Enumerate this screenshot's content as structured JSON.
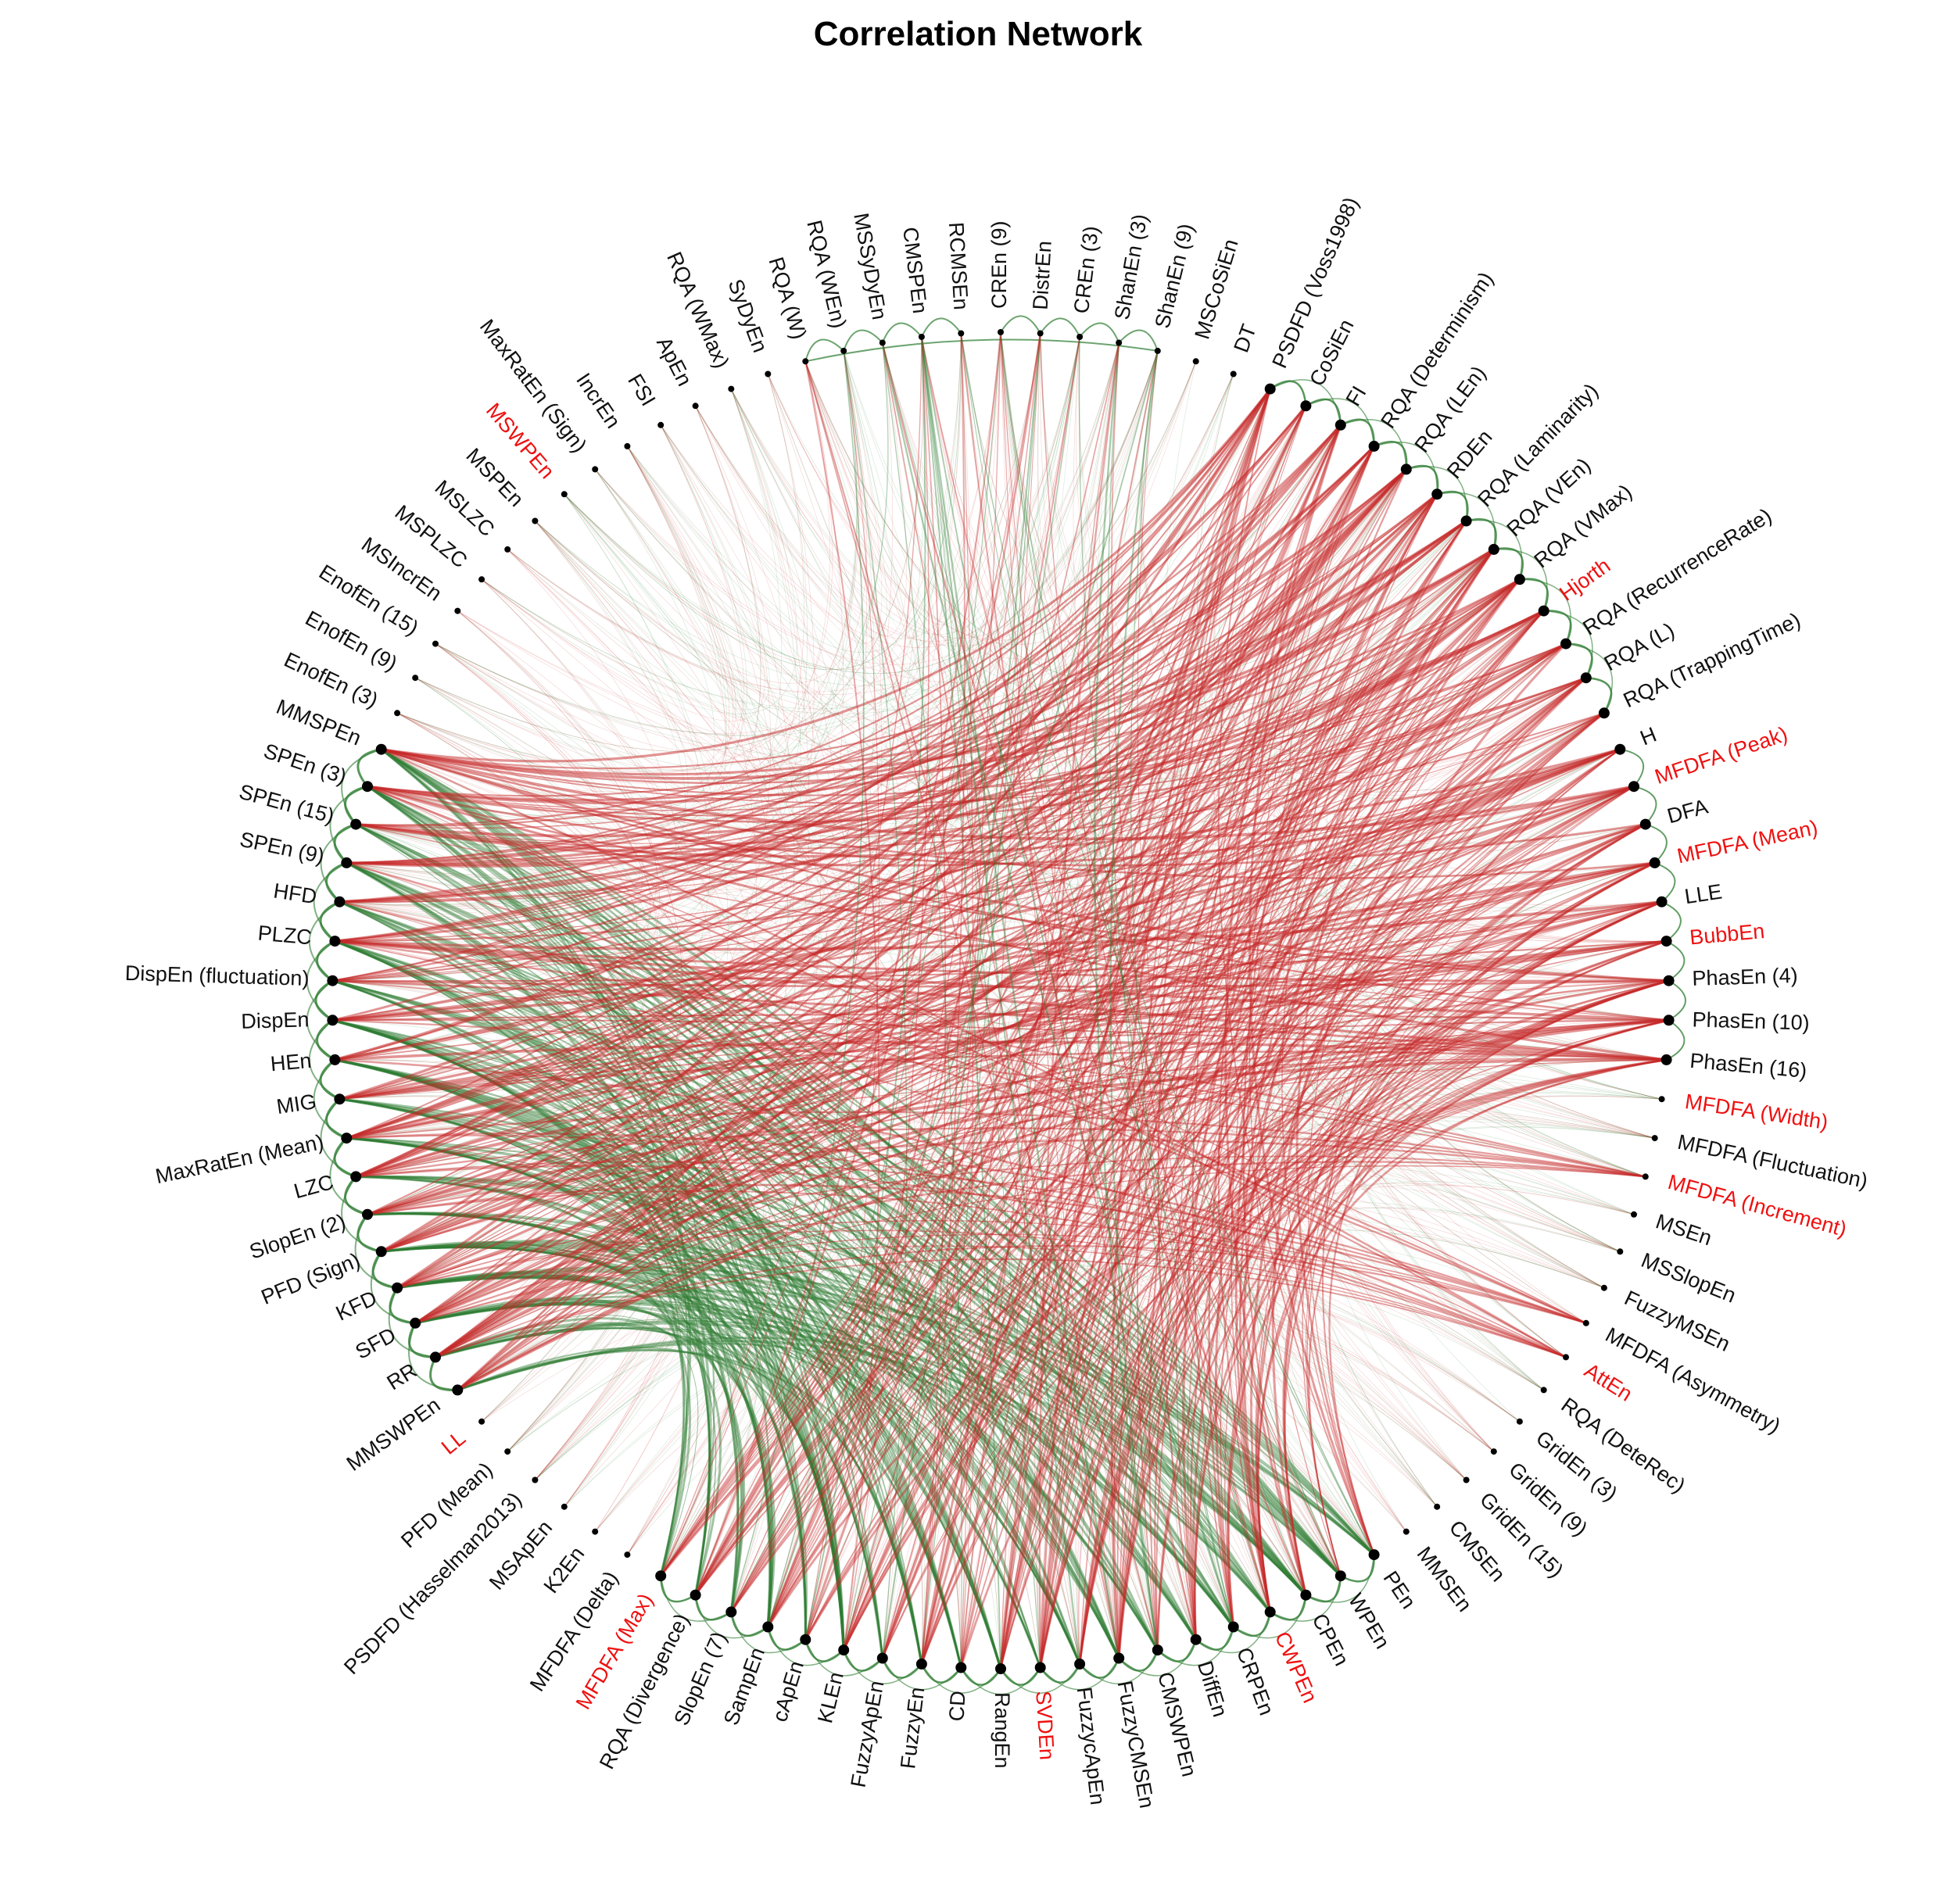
{
  "title": "Correlation Network",
  "colors": {
    "positive": "#2e7d32",
    "negative": "#c62828",
    "label_default": "#111111",
    "label_highlight": "#ee1111",
    "node": "#000000"
  },
  "nodes": [
    {
      "label": "CREn (9)",
      "highlight": false
    },
    {
      "label": "DistrEn",
      "highlight": false
    },
    {
      "label": "CREn (3)",
      "highlight": false
    },
    {
      "label": "ShanEn (3)",
      "highlight": false
    },
    {
      "label": "ShanEn (9)",
      "highlight": false
    },
    {
      "label": "MSCoSiEn",
      "highlight": false
    },
    {
      "label": "DT",
      "highlight": false
    },
    {
      "label": "PSDFD (Voss1998)",
      "highlight": false
    },
    {
      "label": "CoSiEn",
      "highlight": false
    },
    {
      "label": "FI",
      "highlight": false
    },
    {
      "label": "RQA (Determinism)",
      "highlight": false
    },
    {
      "label": "RQA (LEn)",
      "highlight": false
    },
    {
      "label": "RDEn",
      "highlight": false
    },
    {
      "label": "RQA (Laminarity)",
      "highlight": false
    },
    {
      "label": "RQA (VEn)",
      "highlight": false
    },
    {
      "label": "RQA (VMax)",
      "highlight": false
    },
    {
      "label": "Hjorth",
      "highlight": true
    },
    {
      "label": "RQA (RecurrenceRate)",
      "highlight": false
    },
    {
      "label": "RQA (L)",
      "highlight": false
    },
    {
      "label": "RQA (TrappingTime)",
      "highlight": false
    },
    {
      "label": "H",
      "highlight": false
    },
    {
      "label": "MFDFA (Peak)",
      "highlight": true
    },
    {
      "label": "DFA",
      "highlight": false
    },
    {
      "label": "MFDFA (Mean)",
      "highlight": true
    },
    {
      "label": "LLE",
      "highlight": false
    },
    {
      "label": "BubbEn",
      "highlight": true
    },
    {
      "label": "PhasEn (4)",
      "highlight": false
    },
    {
      "label": "PhasEn (10)",
      "highlight": false
    },
    {
      "label": "PhasEn (16)",
      "highlight": false
    },
    {
      "label": "MFDFA (Width)",
      "highlight": true
    },
    {
      "label": "MFDFA (Fluctuation)",
      "highlight": false
    },
    {
      "label": "MFDFA (Increment)",
      "highlight": true
    },
    {
      "label": "MSEn",
      "highlight": false
    },
    {
      "label": "MSSlopEn",
      "highlight": false
    },
    {
      "label": "FuzzyMSEn",
      "highlight": false
    },
    {
      "label": "MFDFA (Asymmetry)",
      "highlight": false
    },
    {
      "label": "AttEn",
      "highlight": true
    },
    {
      "label": "RQA (DeteRec)",
      "highlight": false
    },
    {
      "label": "GridEn (3)",
      "highlight": false
    },
    {
      "label": "GridEn (9)",
      "highlight": false
    },
    {
      "label": "GridEn (15)",
      "highlight": false
    },
    {
      "label": "CMSEn",
      "highlight": false
    },
    {
      "label": "MMSEn",
      "highlight": false
    },
    {
      "label": "PEn",
      "highlight": false
    },
    {
      "label": "WPEn",
      "highlight": false
    },
    {
      "label": "CPEn",
      "highlight": false
    },
    {
      "label": "CWPEn",
      "highlight": true
    },
    {
      "label": "CRPEn",
      "highlight": false
    },
    {
      "label": "DiffEn",
      "highlight": false
    },
    {
      "label": "CMSWPEn",
      "highlight": false
    },
    {
      "label": "FuzzyCMSEn",
      "highlight": false
    },
    {
      "label": "FuzzycApEn",
      "highlight": false
    },
    {
      "label": "SVDEn",
      "highlight": true
    },
    {
      "label": "RangEn",
      "highlight": false
    },
    {
      "label": "CD",
      "highlight": false
    },
    {
      "label": "FuzzyEn",
      "highlight": false
    },
    {
      "label": "FuzzyApEn",
      "highlight": false
    },
    {
      "label": "KLEn",
      "highlight": false
    },
    {
      "label": "cApEn",
      "highlight": false
    },
    {
      "label": "SampEn",
      "highlight": false
    },
    {
      "label": "SlopEn (7)",
      "highlight": false
    },
    {
      "label": "RQA (Divergence)",
      "highlight": false
    },
    {
      "label": "MFDFA (Max)",
      "highlight": true
    },
    {
      "label": "MFDFA (Delta)",
      "highlight": false
    },
    {
      "label": "K2En",
      "highlight": false
    },
    {
      "label": "MSApEn",
      "highlight": false
    },
    {
      "label": "PSDFD (Hasselman2013)",
      "highlight": false
    },
    {
      "label": "PFD (Mean)",
      "highlight": false
    },
    {
      "label": "LL",
      "highlight": true
    },
    {
      "label": "MMSWPEn",
      "highlight": false
    },
    {
      "label": "RR",
      "highlight": false
    },
    {
      "label": "SFD",
      "highlight": false
    },
    {
      "label": "KFD",
      "highlight": false
    },
    {
      "label": "PFD (Sign)",
      "highlight": false
    },
    {
      "label": "SlopEn (2)",
      "highlight": false
    },
    {
      "label": "LZC",
      "highlight": false
    },
    {
      "label": "MaxRatEn (Mean)",
      "highlight": false
    },
    {
      "label": "MIG",
      "highlight": false
    },
    {
      "label": "HEn",
      "highlight": false
    },
    {
      "label": "DispEn",
      "highlight": false
    },
    {
      "label": "DispEn (fluctuation)",
      "highlight": false
    },
    {
      "label": "PLZC",
      "highlight": false
    },
    {
      "label": "HFD",
      "highlight": false
    },
    {
      "label": "SPEn (9)",
      "highlight": false
    },
    {
      "label": "SPEn (15)",
      "highlight": false
    },
    {
      "label": "SPEn (3)",
      "highlight": false
    },
    {
      "label": "MMSPEn",
      "highlight": false
    },
    {
      "label": "EnofEn (3)",
      "highlight": false
    },
    {
      "label": "EnofEn (9)",
      "highlight": false
    },
    {
      "label": "EnofEn (15)",
      "highlight": false
    },
    {
      "label": "MSIncrEn",
      "highlight": false
    },
    {
      "label": "MSPLZC",
      "highlight": false
    },
    {
      "label": "MSLZC",
      "highlight": false
    },
    {
      "label": "MSPEn",
      "highlight": false
    },
    {
      "label": "MSWPEn",
      "highlight": true
    },
    {
      "label": "MaxRatEn (Sign)",
      "highlight": false
    },
    {
      "label": "IncrEn",
      "highlight": false
    },
    {
      "label": "FSI",
      "highlight": false
    },
    {
      "label": "ApEn",
      "highlight": false
    },
    {
      "label": "RQA (WMax)",
      "highlight": false
    },
    {
      "label": "SyDyEn",
      "highlight": false
    },
    {
      "label": "RQA (W)",
      "highlight": false
    },
    {
      "label": "RQA (WEn)",
      "highlight": false
    },
    {
      "label": "MSSyDyEn",
      "highlight": false
    },
    {
      "label": "CMSPEn",
      "highlight": false
    },
    {
      "label": "RCMSEn",
      "highlight": false
    }
  ]
}
